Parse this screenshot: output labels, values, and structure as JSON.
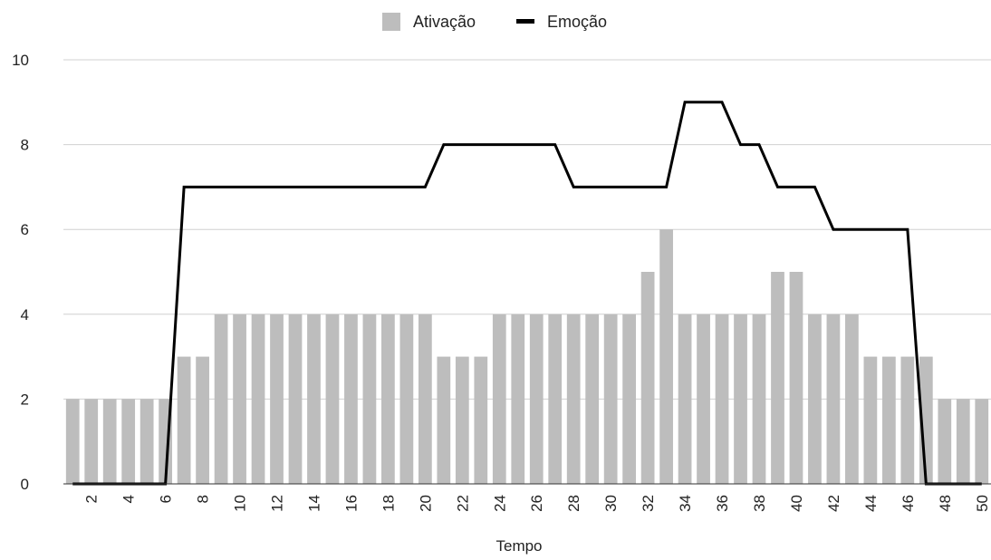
{
  "chart_data": {
    "type": "bar",
    "title": "",
    "xlabel": "Tempo",
    "ylabel": "",
    "ylim": [
      0,
      10
    ],
    "yticks": [
      0,
      2,
      4,
      6,
      8,
      10
    ],
    "xtick_labels": [
      "2",
      "4",
      "6",
      "8",
      "10",
      "12",
      "14",
      "16",
      "18",
      "20",
      "22",
      "24",
      "26",
      "28",
      "30",
      "32",
      "34",
      "36",
      "38",
      "40",
      "42",
      "44",
      "46",
      "48",
      "50"
    ],
    "grid": true,
    "legend_position": "top-center",
    "x": [
      1,
      2,
      3,
      4,
      5,
      6,
      7,
      8,
      9,
      10,
      11,
      12,
      13,
      14,
      15,
      16,
      17,
      18,
      19,
      20,
      21,
      22,
      23,
      24,
      25,
      26,
      27,
      28,
      29,
      30,
      31,
      32,
      33,
      34,
      35,
      36,
      37,
      38,
      39,
      40,
      41,
      42,
      43,
      44,
      45,
      46,
      47,
      48,
      49,
      50
    ],
    "series": [
      {
        "name": "Ativação",
        "kind": "bar",
        "color": "#bdbdbd",
        "values": [
          2,
          2,
          2,
          2,
          2,
          2,
          3,
          3,
          4,
          4,
          4,
          4,
          4,
          4,
          4,
          4,
          4,
          4,
          4,
          4,
          3,
          3,
          3,
          4,
          4,
          4,
          4,
          4,
          4,
          4,
          4,
          5,
          6,
          4,
          4,
          4,
          4,
          4,
          5,
          5,
          4,
          4,
          4,
          3,
          3,
          3,
          3,
          2,
          2,
          2
        ]
      },
      {
        "name": "Emoção",
        "kind": "line",
        "color": "#000000",
        "values": [
          0,
          0,
          0,
          0,
          0,
          0,
          7,
          7,
          7,
          7,
          7,
          7,
          7,
          7,
          7,
          7,
          7,
          7,
          7,
          7,
          8,
          8,
          8,
          8,
          8,
          8,
          8,
          7,
          7,
          7,
          7,
          7,
          7,
          9,
          9,
          9,
          8,
          8,
          7,
          7,
          7,
          6,
          6,
          6,
          6,
          6,
          0,
          0,
          0,
          0
        ]
      }
    ]
  }
}
